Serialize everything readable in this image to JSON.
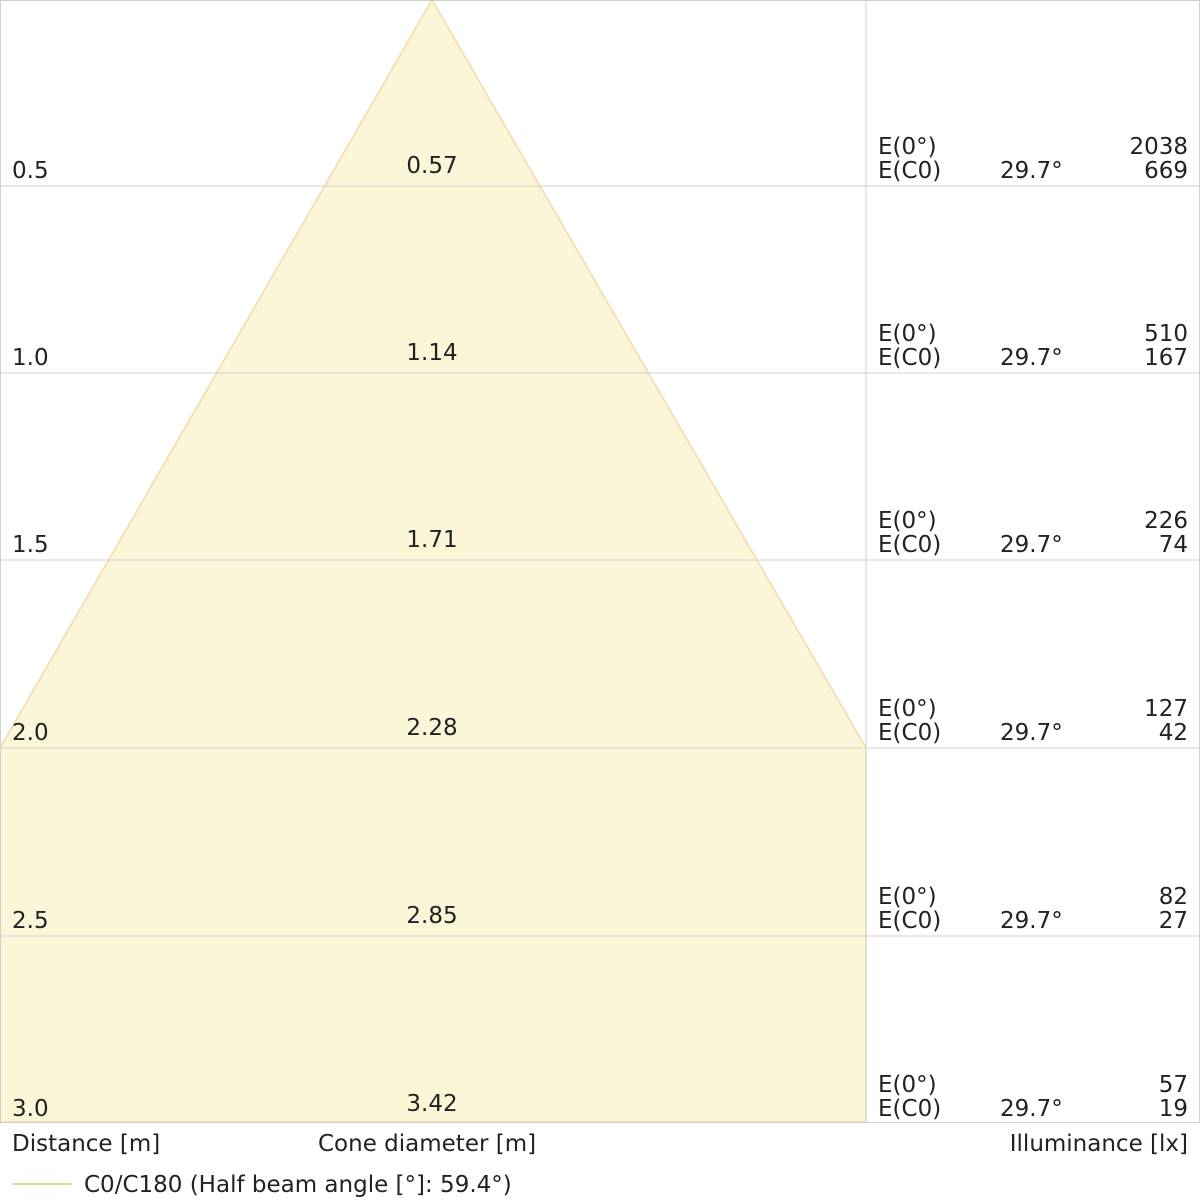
{
  "chart_data": {
    "type": "beam_cone_diagram",
    "colors": {
      "cone_fill": "#fcf6d9",
      "cone_edge": "#f5d9a8",
      "grid": "#d0d0d0",
      "legend_line": "#f5cfa0"
    },
    "rows": [
      {
        "distance": "0.5",
        "diameter": "0.57",
        "e0_label": "E(0°)",
        "ec0_label": "E(C0)",
        "angle": "29.7°",
        "e0": "2038",
        "ec0": "669"
      },
      {
        "distance": "1.0",
        "diameter": "1.14",
        "e0_label": "E(0°)",
        "ec0_label": "E(C0)",
        "angle": "29.7°",
        "e0": "510",
        "ec0": "167"
      },
      {
        "distance": "1.5",
        "diameter": "1.71",
        "e0_label": "E(0°)",
        "ec0_label": "E(C0)",
        "angle": "29.7°",
        "e0": "226",
        "ec0": "74"
      },
      {
        "distance": "2.0",
        "diameter": "2.28",
        "e0_label": "E(0°)",
        "ec0_label": "E(C0)",
        "angle": "29.7°",
        "e0": "127",
        "ec0": "42"
      },
      {
        "distance": "2.5",
        "diameter": "2.85",
        "e0_label": "E(0°)",
        "ec0_label": "E(C0)",
        "angle": "29.7°",
        "e0": "82",
        "ec0": "27"
      },
      {
        "distance": "3.0",
        "diameter": "3.42",
        "e0_label": "E(0°)",
        "ec0_label": "E(C0)",
        "angle": "29.7°",
        "e0": "57",
        "ec0": "19"
      }
    ],
    "footer": {
      "distance": "Distance [m]",
      "diameter": "Cone diameter [m]",
      "illuminance": "Illuminance [lx]"
    },
    "legend": "C0/C180 (Half beam angle [°]: 59.4°)"
  }
}
